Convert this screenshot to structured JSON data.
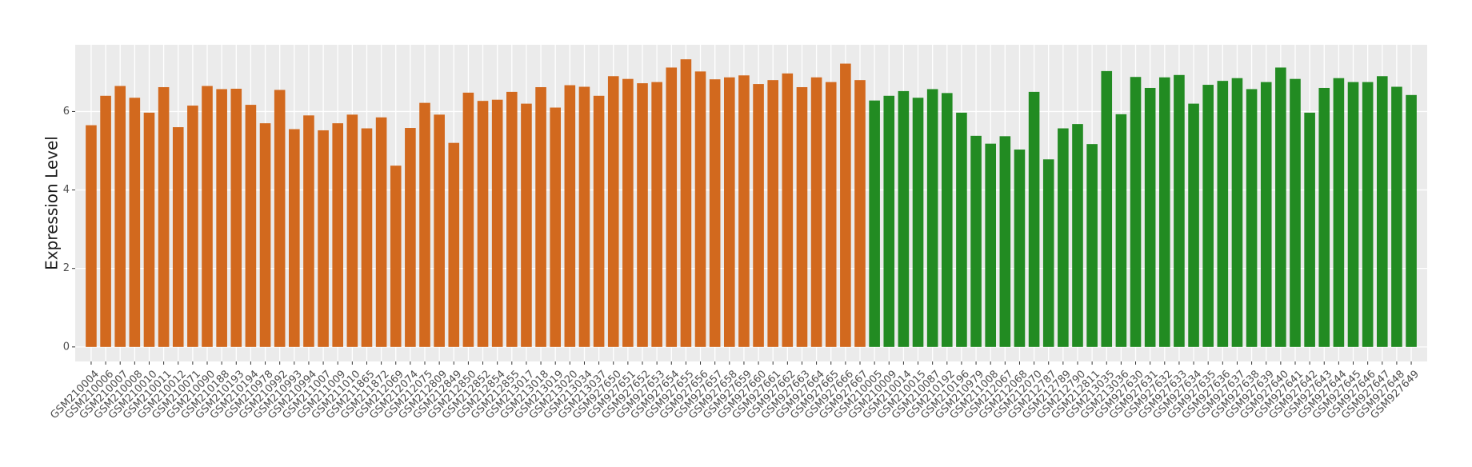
{
  "chart_data": {
    "type": "bar",
    "y_label": "Expression Level",
    "categories": [
      "GSM210004",
      "GSM210006",
      "GSM210007",
      "GSM210008",
      "GSM210010",
      "GSM210011",
      "GSM210012",
      "GSM210071",
      "GSM210090",
      "GSM210188",
      "GSM210193",
      "GSM210194",
      "GSM210978",
      "GSM210992",
      "GSM210993",
      "GSM210994",
      "GSM211007",
      "GSM211009",
      "GSM211010",
      "GSM211865",
      "GSM211872",
      "GSM212069",
      "GSM212074",
      "GSM212075",
      "GSM212809",
      "GSM212849",
      "GSM212850",
      "GSM212852",
      "GSM212854",
      "GSM212855",
      "GSM213017",
      "GSM213018",
      "GSM213019",
      "GSM213020",
      "GSM213034",
      "GSM213037",
      "GSM927650",
      "GSM927651",
      "GSM927652",
      "GSM927653",
      "GSM927654",
      "GSM927655",
      "GSM927656",
      "GSM927657",
      "GSM927658",
      "GSM927659",
      "GSM927660",
      "GSM927661",
      "GSM927662",
      "GSM927663",
      "GSM927664",
      "GSM927665",
      "GSM927666",
      "GSM927667",
      "GSM210005",
      "GSM210009",
      "GSM210014",
      "GSM210015",
      "GSM210087",
      "GSM210192",
      "GSM210196",
      "GSM210979",
      "GSM211008",
      "GSM212067",
      "GSM212068",
      "GSM212070",
      "GSM212787",
      "GSM212789",
      "GSM212790",
      "GSM212811",
      "GSM213035",
      "GSM213036",
      "GSM927630",
      "GSM927631",
      "GSM927632",
      "GSM927633",
      "GSM927634",
      "GSM927635",
      "GSM927636",
      "GSM927637",
      "GSM927638",
      "GSM927639",
      "GSM927640",
      "GSM927641",
      "GSM927642",
      "GSM927643",
      "GSM927644",
      "GSM927645",
      "GSM927646",
      "GSM927647",
      "GSM927648",
      "GSM927649"
    ],
    "series": [
      {
        "color": "#d2691e",
        "values": [
          5.65,
          6.4,
          6.65,
          6.35,
          5.97,
          6.62,
          5.6,
          6.15,
          6.65,
          6.57,
          6.58,
          6.17,
          5.7,
          6.55,
          5.55,
          5.9,
          5.52,
          5.7,
          5.92,
          5.57,
          5.85,
          4.62,
          5.58,
          6.22,
          5.92,
          5.2,
          6.48,
          6.27,
          6.3,
          6.5,
          6.2,
          6.62,
          6.1,
          6.67,
          6.63,
          6.4,
          6.9,
          6.83,
          6.72,
          6.75,
          7.12,
          7.33,
          7.02,
          6.82,
          6.87,
          6.92,
          6.7,
          6.8,
          6.97,
          6.62,
          6.87,
          6.75,
          7.22,
          6.8,
          null,
          null,
          null,
          null,
          null,
          null,
          null,
          null,
          null,
          null,
          null,
          null,
          null,
          null,
          null,
          null,
          null,
          null,
          null,
          null,
          null,
          null,
          null,
          null,
          null,
          null,
          null,
          null,
          null,
          null,
          null,
          null,
          null,
          null,
          null,
          null,
          null,
          null
        ]
      },
      {
        "color": "#228b22",
        "values": [
          null,
          null,
          null,
          null,
          null,
          null,
          null,
          null,
          null,
          null,
          null,
          null,
          null,
          null,
          null,
          null,
          null,
          null,
          null,
          null,
          null,
          null,
          null,
          null,
          null,
          null,
          null,
          null,
          null,
          null,
          null,
          null,
          null,
          null,
          null,
          null,
          null,
          null,
          null,
          null,
          null,
          null,
          null,
          null,
          null,
          null,
          null,
          null,
          null,
          null,
          null,
          null,
          null,
          null,
          6.28,
          6.4,
          6.52,
          6.35,
          6.57,
          6.47,
          5.97,
          5.38,
          5.18,
          5.37,
          5.03,
          6.5,
          4.78,
          5.57,
          5.68,
          5.17,
          7.03,
          5.93,
          6.88,
          6.6,
          6.87,
          6.93,
          6.2,
          6.68,
          6.78,
          6.85,
          6.57,
          6.75,
          7.12,
          6.83,
          5.97,
          6.6,
          6.85,
          6.75,
          6.75,
          6.9,
          6.63,
          6.42
        ]
      }
    ],
    "ylim": [
      -0.37,
      7.7
    ],
    "yticks": [
      0,
      2,
      4,
      6
    ],
    "grid": true
  }
}
